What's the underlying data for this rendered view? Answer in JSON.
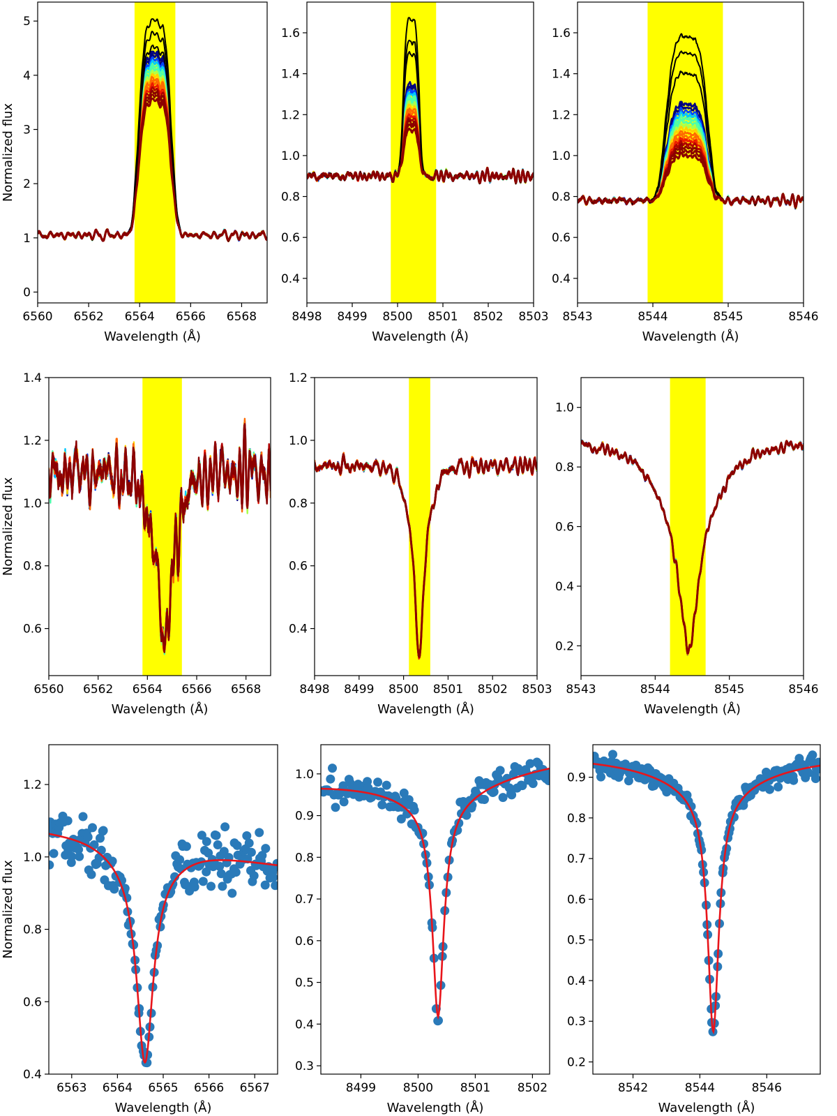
{
  "colors": {
    "highlight": "#ffff00",
    "fit": "#e8151b",
    "points": "#2a7ab9",
    "spectra_palette": [
      "#00007f",
      "#0044ff",
      "#00c8ff",
      "#4dffaa",
      "#aaff4d",
      "#ffd200",
      "#ff6a00",
      "#ee1a00",
      "#b00000",
      "#8b0000"
    ],
    "emission_black": "#000000"
  },
  "chart_data": [
    {
      "type": "line",
      "panel": "top-left",
      "title": "",
      "xlabel": "Wavelength (Å)",
      "ylabel": "Normalized flux",
      "xlim": [
        6560,
        6569
      ],
      "ylim": [
        -0.2,
        5.35
      ],
      "xticks": [
        6560,
        6562,
        6564,
        6566,
        6568
      ],
      "xtick_labels": [
        "6560",
        "6562",
        "6564",
        "6566",
        "6568"
      ],
      "yticks": [
        0,
        1,
        2,
        3,
        4,
        5
      ],
      "ytick_labels": [
        "0",
        "1",
        "2",
        "3",
        "4",
        "5"
      ],
      "highlight": [
        6563.8,
        6565.4
      ],
      "profile": "emission",
      "continuum": 1.05,
      "center": 6564.6,
      "halfwidth": 0.65,
      "noise": 0.09,
      "peak_black": [
        5.0,
        4.75,
        4.5
      ],
      "peak_color": [
        4.4,
        4.0,
        3.6
      ]
    },
    {
      "type": "line",
      "panel": "top-middle",
      "title": "",
      "xlabel": "Wavelength (Å)",
      "ylabel": "",
      "xlim": [
        8498,
        8503
      ],
      "ylim": [
        0.28,
        1.75
      ],
      "xticks": [
        8498,
        8499,
        8500,
        8501,
        8502,
        8503
      ],
      "xtick_labels": [
        "8498",
        "8499",
        "8500",
        "8501",
        "8502",
        "8503"
      ],
      "yticks": [
        0.4,
        0.6,
        0.8,
        1.0,
        1.2,
        1.4,
        1.6
      ],
      "ytick_labels": [
        "0.4",
        "0.6",
        "0.8",
        "1.0",
        "1.2",
        "1.4",
        "1.6"
      ],
      "highlight": [
        8499.85,
        8500.85
      ],
      "profile": "emission",
      "continuum": 0.9,
      "center": 8500.3,
      "halfwidth": 0.18,
      "noise": 0.035,
      "peak_black": [
        1.67,
        1.56,
        1.5
      ],
      "peak_color": [
        1.35,
        1.25,
        1.15
      ]
    },
    {
      "type": "line",
      "panel": "top-right",
      "title": "",
      "xlabel": "Wavelength (Å)",
      "ylabel": "",
      "xlim": [
        8543,
        8546
      ],
      "ylim": [
        0.28,
        1.75
      ],
      "xticks": [
        8543,
        8544,
        8545,
        8546
      ],
      "xtick_labels": [
        "8543",
        "8544",
        "8545",
        "8546"
      ],
      "yticks": [
        0.4,
        0.6,
        0.8,
        1.0,
        1.2,
        1.4,
        1.6
      ],
      "ytick_labels": [
        "0.4",
        "0.6",
        "0.8",
        "1.0",
        "1.2",
        "1.4",
        "1.6"
      ],
      "highlight": [
        8543.93,
        8544.93
      ],
      "profile": "emission",
      "continuum": 0.78,
      "center": 8544.45,
      "halfwidth": 0.28,
      "noise": 0.03,
      "peak_black": [
        1.58,
        1.5,
        1.4
      ],
      "peak_color": [
        1.25,
        1.12,
        1.02
      ]
    },
    {
      "type": "line",
      "panel": "middle-left",
      "title": "",
      "xlabel": "Wavelength (Å)",
      "ylabel": "Normalized flux",
      "xlim": [
        6560,
        6569
      ],
      "ylim": [
        0.45,
        1.4
      ],
      "xticks": [
        6560,
        6562,
        6564,
        6566,
        6568
      ],
      "xtick_labels": [
        "6560",
        "6562",
        "6564",
        "6566",
        "6568"
      ],
      "yticks": [
        0.6,
        0.8,
        1.0,
        1.2,
        1.4
      ],
      "ytick_labels": [
        "0.6",
        "0.8",
        "1.0",
        "1.2",
        "1.4"
      ],
      "highlight": [
        6563.8,
        6565.4
      ],
      "profile": "absorption",
      "continuum": 1.1,
      "center": 6564.7,
      "depth": 0.58,
      "halfwidth": 0.25,
      "noise": 0.14
    },
    {
      "type": "line",
      "panel": "middle-middle",
      "title": "",
      "xlabel": "Wavelength (Å)",
      "ylabel": "",
      "xlim": [
        8498,
        8503
      ],
      "ylim": [
        0.25,
        1.2
      ],
      "xticks": [
        8498,
        8499,
        8500,
        8501,
        8502,
        8503
      ],
      "xtick_labels": [
        "8498",
        "8499",
        "8500",
        "8501",
        "8502",
        "8503"
      ],
      "yticks": [
        0.4,
        0.6,
        0.8,
        1.0,
        1.2
      ],
      "ytick_labels": [
        "0.4",
        "0.6",
        "0.8",
        "1.0",
        "1.2"
      ],
      "highlight": [
        8500.12,
        8500.6
      ],
      "profile": "absorption",
      "continuum": 0.92,
      "center": 8500.35,
      "depth": 0.62,
      "halfwidth": 0.1,
      "noise": 0.04
    },
    {
      "type": "line",
      "panel": "middle-right",
      "title": "",
      "xlabel": "Wavelength (Å)",
      "ylabel": "",
      "xlim": [
        8543,
        8546
      ],
      "ylim": [
        0.1,
        1.1
      ],
      "xticks": [
        8543,
        8544,
        8545,
        8546
      ],
      "xtick_labels": [
        "8543",
        "8544",
        "8545",
        "8546"
      ],
      "yticks": [
        0.2,
        0.4,
        0.6,
        0.8,
        1.0
      ],
      "ytick_labels": [
        "0.2",
        "0.4",
        "0.6",
        "0.8",
        "1.0"
      ],
      "highlight": [
        8544.2,
        8544.68
      ],
      "profile": "absorption",
      "continuum": 0.82,
      "center": 8544.45,
      "depth": 0.64,
      "halfwidth": 0.14,
      "noise": 0.03
    },
    {
      "type": "scatter",
      "panel": "bottom-left",
      "title": "",
      "xlabel": "Wavelength (Å)",
      "ylabel": "Normalized flux",
      "xlim": [
        6562.5,
        6567.5
      ],
      "ylim": [
        0.4,
        1.31
      ],
      "xticks": [
        6563,
        6564,
        6565,
        6566,
        6567
      ],
      "xtick_labels": [
        "6563",
        "6564",
        "6565",
        "6566",
        "6567"
      ],
      "yticks": [
        0.4,
        0.6,
        0.8,
        1.0,
        1.2
      ],
      "ytick_labels": [
        "0.4",
        "0.6",
        "0.8",
        "1.0",
        "1.2"
      ],
      "fit": {
        "center": 6564.6,
        "depth": 0.55,
        "gamma": 0.22,
        "baseline_left": 1.07,
        "baseline_right": 0.98
      },
      "points": {
        "count": 190,
        "scatter": 0.1,
        "core_scatter": 0.03
      }
    },
    {
      "type": "scatter",
      "panel": "bottom-middle",
      "title": "",
      "xlabel": "Wavelength (Å)",
      "ylabel": "",
      "xlim": [
        8498.3,
        8502.3
      ],
      "ylim": [
        0.28,
        1.07
      ],
      "xticks": [
        8499,
        8500,
        8501,
        8502
      ],
      "xtick_labels": [
        "8499",
        "8500",
        "8501",
        "8502"
      ],
      "yticks": [
        0.3,
        0.4,
        0.5,
        0.6,
        0.7,
        0.8,
        0.9,
        1.0
      ],
      "ytick_labels": [
        "0.3",
        "0.4",
        "0.5",
        "0.6",
        "0.7",
        "0.8",
        "0.9",
        "1.0"
      ],
      "fit": {
        "center": 8500.35,
        "depth": 0.48,
        "gamma": 0.12,
        "baseline_left": 0.98,
        "baseline_right": 1.03,
        "wing_drop": 0.12
      },
      "points": {
        "count": 150,
        "scatter": 0.04,
        "core_scatter": 0.015
      }
    },
    {
      "type": "scatter",
      "panel": "bottom-right",
      "title": "",
      "xlabel": "Wavelength (Å)",
      "ylabel": "",
      "xlim": [
        8540.8,
        8547.6
      ],
      "ylim": [
        0.17,
        0.98
      ],
      "xticks": [
        8542,
        8544,
        8546
      ],
      "xtick_labels": [
        "8542",
        "8544",
        "8546"
      ],
      "yticks": [
        0.2,
        0.3,
        0.4,
        0.5,
        0.6,
        0.7,
        0.8,
        0.9
      ],
      "ytick_labels": [
        "0.2",
        "0.3",
        "0.4",
        "0.5",
        "0.6",
        "0.7",
        "0.8",
        "0.9"
      ],
      "fit": {
        "center": 8544.4,
        "depth": 0.55,
        "gamma": 0.2,
        "baseline_left": 0.95,
        "baseline_right": 0.95,
        "wing_drop": 0.14
      },
      "points": {
        "count": 220,
        "scatter": 0.025,
        "core_scatter": 0.012
      }
    }
  ]
}
